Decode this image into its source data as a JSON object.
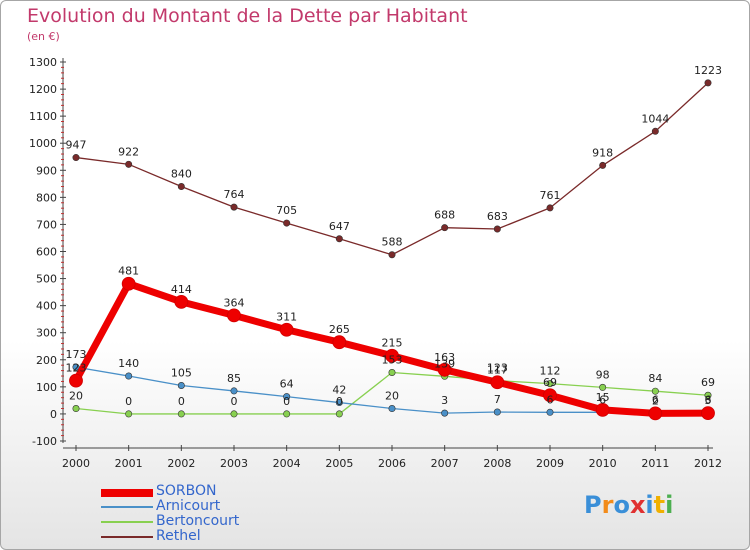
{
  "title": "Evolution du Montant de la Dette par Habitant",
  "unit": "(en €)",
  "logo": {
    "letters": [
      "P",
      "r",
      "o",
      "x",
      "i",
      "t",
      "i"
    ],
    "colors": [
      "#3a8fd8",
      "#f28b1a",
      "#3a8fd8",
      "#e03030",
      "#3a8fd8",
      "#f0b000",
      "#4caf50"
    ]
  },
  "chart_data": {
    "type": "line",
    "title": "Evolution du Montant de la Dette par Habitant",
    "ylabel": "(en €)",
    "x": [
      "2000",
      "2001",
      "2002",
      "2003",
      "2004",
      "2005",
      "2006",
      "2007",
      "2008",
      "2009",
      "2010",
      "2011",
      "2012"
    ],
    "ylim": [
      -100,
      1300
    ],
    "yticks": [
      "-100",
      "0",
      "100",
      "200",
      "300",
      "400",
      "500",
      "600",
      "700",
      "800",
      "900",
      "1000",
      "1100",
      "1200",
      "1300"
    ],
    "grid": false,
    "legend": "bottom-left",
    "series": [
      {
        "name": "SORBON",
        "color": "#ee0000",
        "values": [
          123,
          481,
          414,
          364,
          311,
          265,
          215,
          163,
          117,
          69,
          15,
          2,
          3
        ],
        "labels": [
          "123",
          "481",
          "414",
          "364",
          "311",
          "265",
          "215",
          "163",
          "117",
          "69",
          "15",
          "2",
          "3"
        ]
      },
      {
        "name": "Arnicourt",
        "color": "#4a90c8",
        "values": [
          173,
          140,
          105,
          85,
          64,
          42,
          20,
          3,
          7,
          6,
          6,
          6,
          6
        ],
        "labels": [
          "173",
          "140",
          "105",
          "85",
          "64",
          "42",
          "20",
          "3",
          "7",
          "6",
          "6",
          "6",
          "6"
        ]
      },
      {
        "name": "Bertoncourt",
        "color": "#88d050",
        "values": [
          20,
          0,
          0,
          0,
          0,
          0,
          153,
          139,
          123,
          112,
          98,
          84,
          69
        ],
        "labels": [
          "20",
          "0",
          "0",
          "0",
          "0",
          "0",
          "153",
          "139",
          "123",
          "112",
          "98",
          "84",
          "69"
        ]
      },
      {
        "name": "Rethel",
        "color": "#7a2a2a",
        "values": [
          947,
          922,
          840,
          764,
          705,
          647,
          588,
          688,
          683,
          761,
          918,
          1044,
          1223
        ],
        "labels": [
          "947",
          "922",
          "840",
          "764",
          "705",
          "647",
          "588",
          "688",
          "683",
          "761",
          "918",
          "1044",
          "1223"
        ]
      }
    ]
  }
}
